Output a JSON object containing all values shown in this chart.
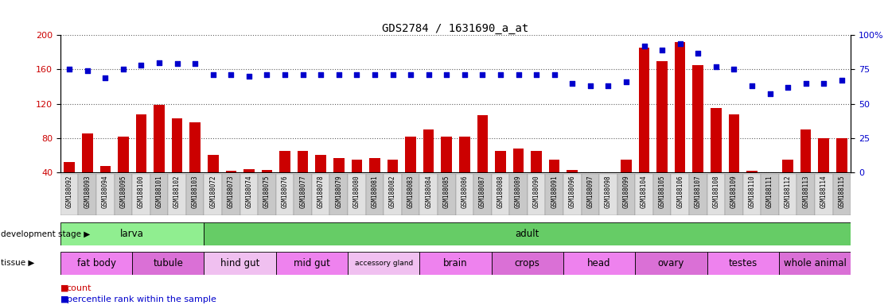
{
  "title": "GDS2784 / 1631690_a_at",
  "samples": [
    "GSM188092",
    "GSM188093",
    "GSM188094",
    "GSM188095",
    "GSM188100",
    "GSM188101",
    "GSM188102",
    "GSM188103",
    "GSM188072",
    "GSM188073",
    "GSM188074",
    "GSM188075",
    "GSM188076",
    "GSM188077",
    "GSM188078",
    "GSM188079",
    "GSM188080",
    "GSM188081",
    "GSM188082",
    "GSM188083",
    "GSM188084",
    "GSM188085",
    "GSM188086",
    "GSM188087",
    "GSM188088",
    "GSM188089",
    "GSM188090",
    "GSM188091",
    "GSM188096",
    "GSM188097",
    "GSM188098",
    "GSM188099",
    "GSM188104",
    "GSM188105",
    "GSM188106",
    "GSM188107",
    "GSM188108",
    "GSM188109",
    "GSM188110",
    "GSM188111",
    "GSM188112",
    "GSM188113",
    "GSM188114",
    "GSM188115"
  ],
  "counts": [
    52,
    85,
    47,
    82,
    108,
    119,
    103,
    98,
    60,
    42,
    44,
    43,
    65,
    65,
    60,
    57,
    55,
    57,
    55,
    82,
    90,
    82,
    82,
    107,
    65,
    68,
    65,
    55,
    43,
    38,
    38,
    55,
    185,
    170,
    192,
    165,
    115,
    108,
    42,
    20,
    55,
    90,
    80,
    80
  ],
  "percentile": [
    75,
    74,
    69,
    75,
    78,
    80,
    79,
    79,
    71,
    71,
    70,
    71,
    71,
    71,
    71,
    71,
    71,
    71,
    71,
    71,
    71,
    71,
    71,
    71,
    71,
    71,
    71,
    71,
    65,
    63,
    63,
    66,
    92,
    89,
    94,
    87,
    77,
    75,
    63,
    57,
    62,
    65,
    65,
    67
  ],
  "ylim_left": [
    40,
    200
  ],
  "yticks_left": [
    40,
    80,
    120,
    160,
    200
  ],
  "ylim_right": [
    0,
    100
  ],
  "yticks_right": [
    0,
    25,
    50,
    75,
    100
  ],
  "dev_stage_groups": [
    {
      "label": "larva",
      "start": 0,
      "end": 8,
      "color": "#90ee90"
    },
    {
      "label": "adult",
      "start": 8,
      "end": 44,
      "color": "#66cc66"
    }
  ],
  "tissue_groups": [
    {
      "label": "fat body",
      "start": 0,
      "end": 4,
      "color": "#ee82ee"
    },
    {
      "label": "tubule",
      "start": 4,
      "end": 8,
      "color": "#da70d6"
    },
    {
      "label": "hind gut",
      "start": 8,
      "end": 12,
      "color": "#f0c0f0"
    },
    {
      "label": "mid gut",
      "start": 12,
      "end": 16,
      "color": "#ee82ee"
    },
    {
      "label": "accessory gland",
      "start": 16,
      "end": 20,
      "color": "#f0c0f0"
    },
    {
      "label": "brain",
      "start": 20,
      "end": 24,
      "color": "#ee82ee"
    },
    {
      "label": "crops",
      "start": 24,
      "end": 28,
      "color": "#da70d6"
    },
    {
      "label": "head",
      "start": 28,
      "end": 32,
      "color": "#ee82ee"
    },
    {
      "label": "ovary",
      "start": 32,
      "end": 36,
      "color": "#da70d6"
    },
    {
      "label": "testes",
      "start": 36,
      "end": 40,
      "color": "#ee82ee"
    },
    {
      "label": "whole animal",
      "start": 40,
      "end": 44,
      "color": "#da70d6"
    }
  ],
  "bar_color": "#cc0000",
  "dot_color": "#0000cc",
  "label_color_left": "#cc0000",
  "label_color_right": "#0000cc",
  "grid_color": "#606060",
  "legend_count_color": "#cc0000",
  "legend_pct_color": "#0000cc"
}
